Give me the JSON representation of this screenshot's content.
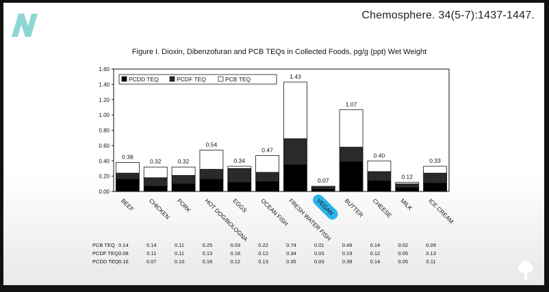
{
  "citation": "Chemosphere. 34(5-7):1437-1447.",
  "brand_icon": "n-logo-icon",
  "corner_icon": "tree-icon",
  "colors": {
    "logo": "#7fd3cf",
    "highlight": "#2ab4e8",
    "pcdd": "#000000",
    "pcdf": "#2a2a2a",
    "pcb": "#ffffff"
  },
  "chart_data": {
    "type": "bar",
    "stacked": true,
    "title": "Figure I. Dioxin, Dibenzofuran and PCB TEQs in Collected Foods, pg/g (ppt) Wet Weight",
    "xlabel": "",
    "ylabel": "",
    "ylim": [
      0,
      1.6
    ],
    "yticks": [
      "0.00",
      "0.20",
      "0.40",
      "0.60",
      "0.80",
      "1.00",
      "1.20",
      "1.40",
      "1.60"
    ],
    "categories": [
      "BEEF",
      "CHICKEN",
      "PORK",
      "HOT DOG/BOLOGNA",
      "EGGS",
      "OCEAN FISH",
      "FRESH WATER FISH",
      "VEGAN",
      "BUTTER",
      "CHEESE",
      "MILK",
      "ICE CREAM"
    ],
    "highlighted_category": "VEGAN",
    "legend": [
      "PCDD TEQ",
      "PCDF TEQ",
      "PCB TEQ"
    ],
    "legend_position": "top-left",
    "totals": [
      "0.38",
      "0.32",
      "0.32",
      "0.54",
      "0.34",
      "0.47",
      "1.43",
      "0.07",
      "1.07",
      "0.40",
      "0.12",
      "0.33"
    ],
    "series": [
      {
        "name": "PCDD TEQ",
        "values": [
          0.16,
          0.07,
          0.1,
          0.16,
          0.12,
          0.13,
          0.35,
          0.03,
          0.39,
          0.14,
          0.05,
          0.11
        ]
      },
      {
        "name": "PCDF TEQ",
        "values": [
          0.08,
          0.11,
          0.11,
          0.13,
          0.18,
          0.12,
          0.34,
          0.03,
          0.19,
          0.12,
          0.05,
          0.13
        ]
      },
      {
        "name": "PCB TEQ",
        "values": [
          0.14,
          0.14,
          0.11,
          0.25,
          0.03,
          0.22,
          0.74,
          0.01,
          0.49,
          0.14,
          0.02,
          0.09
        ]
      }
    ],
    "table": {
      "row_labels": [
        "PCB TEQ",
        "PCDF TEQ",
        "PCDD TEQ"
      ],
      "rows": [
        [
          "0.14",
          "0.14",
          "0.11",
          "0.25",
          "0.03",
          "0.22",
          "0.74",
          "0.01",
          "0.49",
          "0.14",
          "0.02",
          "0.09"
        ],
        [
          "0.08",
          "0.11",
          "0.11",
          "0.13",
          "0.18",
          "0.12",
          "0.34",
          "0.03",
          "0.19",
          "0.12",
          "0.05",
          "0.13"
        ],
        [
          "0.16",
          "0.07",
          "0.10",
          "0.16",
          "0.12",
          "0.13",
          "0.35",
          "0.03",
          "0.39",
          "0.14",
          "0.05",
          "0.11"
        ]
      ]
    }
  }
}
